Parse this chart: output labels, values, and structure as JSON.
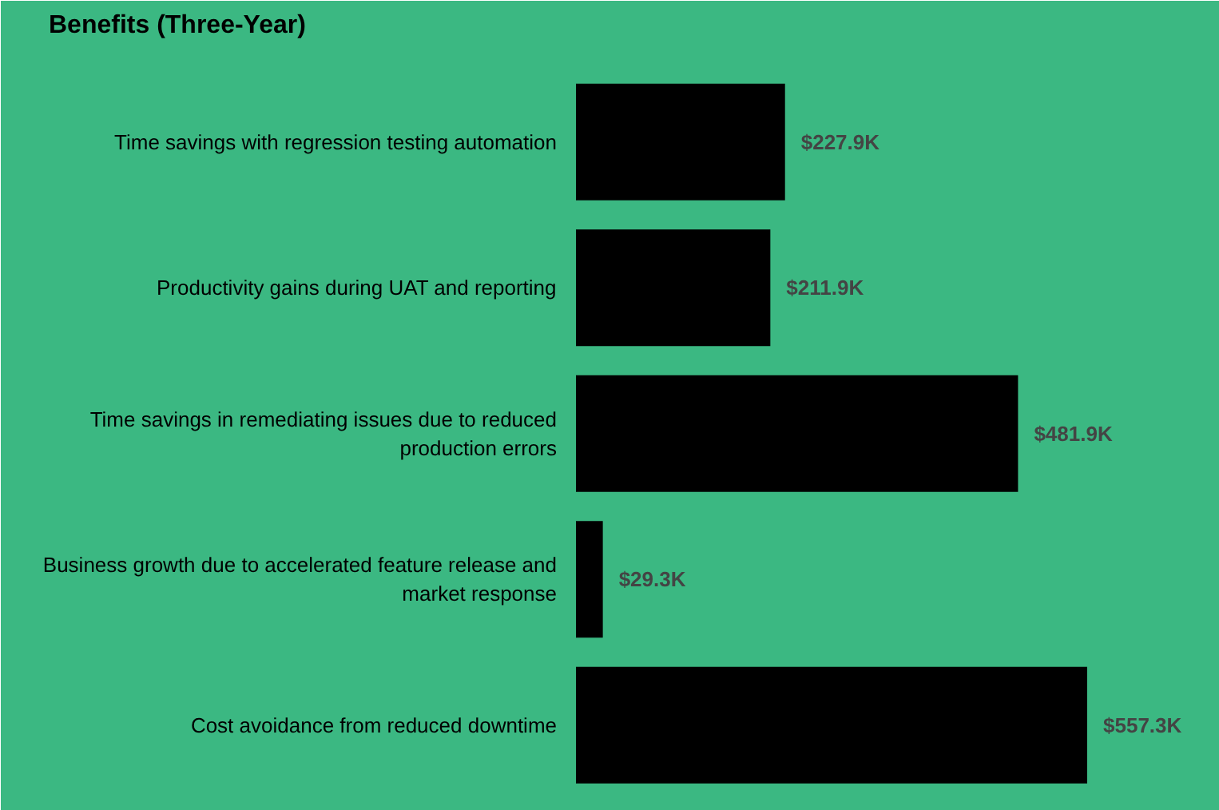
{
  "chart_data": {
    "type": "bar",
    "orientation": "horizontal",
    "title": "Benefits (Three-Year)",
    "categories": [
      "Time savings with regression testing automation",
      "Productivity gains during UAT and reporting",
      "Time savings in remediating issues due to reduced production errors",
      "Business growth due to accelerated feature release and market response",
      "Cost avoidance from reduced downtime"
    ],
    "values": [
      227.9,
      211.9,
      481.9,
      29.3,
      557.3
    ],
    "value_labels": [
      "$227.9K",
      "$211.9K",
      "$481.9K",
      "$29.3K",
      "$557.3K"
    ],
    "color": "#000000"
  }
}
